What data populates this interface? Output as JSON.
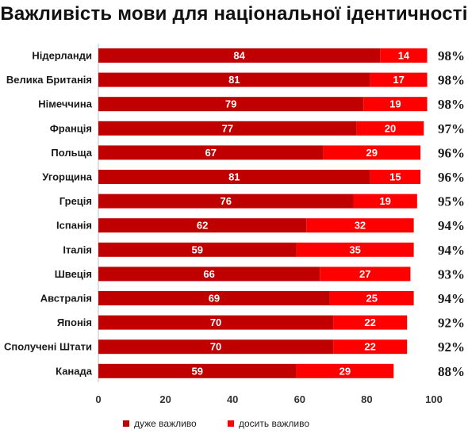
{
  "chart_data": {
    "type": "bar",
    "orientation": "horizontal",
    "stacked": true,
    "title": "Важливість мови для національної ідентичності",
    "categories": [
      "Нідерланди",
      "Велика Британія",
      "Німеччина",
      "Франція",
      "Польща",
      "Угорщина",
      "Греція",
      "Іспанія",
      "Італія",
      "Швеція",
      "Австралія",
      "Японія",
      "Сполучені Штати",
      "Канада"
    ],
    "series": [
      {
        "name": "дуже важливо",
        "color": "#c00000",
        "values": [
          84,
          81,
          79,
          77,
          67,
          81,
          76,
          62,
          59,
          66,
          69,
          70,
          70,
          59
        ]
      },
      {
        "name": "досить важливо",
        "color": "#ff0000",
        "values": [
          14,
          17,
          19,
          20,
          29,
          15,
          19,
          32,
          35,
          27,
          25,
          22,
          22,
          29
        ]
      }
    ],
    "totals": [
      "98%",
      "98%",
      "98%",
      "97%",
      "96%",
      "96%",
      "95%",
      "94%",
      "94%",
      "93%",
      "94%",
      "92%",
      "92%",
      "88%"
    ],
    "xlim": [
      0,
      100
    ],
    "xticks": [
      "0",
      "20",
      "40",
      "60",
      "80",
      "100"
    ],
    "legend_position": "bottom",
    "grid": false
  }
}
